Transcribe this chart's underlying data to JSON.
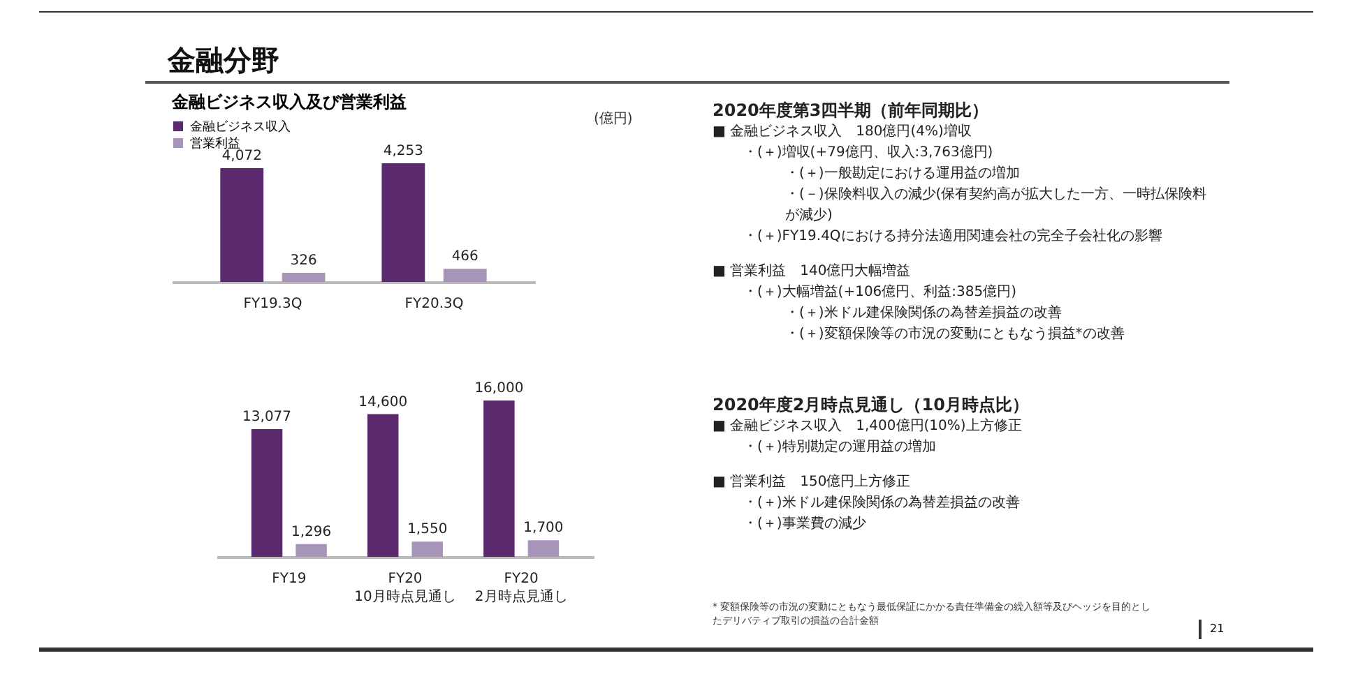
{
  "chart_data": [
    {
      "type": "bar",
      "title": "金融分野",
      "subtitle": "金融ビジネス収入及び営業利益",
      "ylabel": "(億円)",
      "categories": [
        "FY19.3Q",
        "FY20.3Q"
      ],
      "series": [
        {
          "name": "金融ビジネス収入",
          "color": "#5b2a6e",
          "values": [
            4072,
            4253
          ],
          "value_labels": [
            "4,072",
            "4,253"
          ]
        },
        {
          "name": "営業利益",
          "color": "#a893b9",
          "values": [
            326,
            466
          ],
          "value_labels": [
            "326",
            "466"
          ]
        }
      ],
      "legend": "top left",
      "tick_labels": "x"
    },
    {
      "type": "bar",
      "categories": [
        "FY19",
        "FY20\n10月時点見通し",
        "FY20\n2月時点見通し"
      ],
      "series": [
        {
          "color": "#5b2a6e",
          "values": [
            13077,
            14600,
            16000
          ],
          "value_labels": [
            "13,077",
            "14,600",
            "16,000"
          ]
        },
        {
          "color": "#a893b9",
          "values": [
            1296,
            1550,
            1700
          ],
          "value_labels": [
            "1,296",
            "1,550",
            "1,700"
          ]
        }
      ],
      "legend": false,
      "tick_labels": "x"
    },
    {
      "type": "other",
      "annotations": [
        "2020年度第3四半期（前年同期比）",
        "■ 金融ビジネス収入　180億円(4%)増収",
        "・(＋)増収(+79億円、収入:3,763億円)",
        "・(＋)一般勘定における運用益の増加",
        "・(－)保険料収入の減少(保有契約高が拡大した一方、一時払保険料が減少)",
        "・(＋)FY19.4Qにおける持分法適用関連会社の完全子会社化の影響",
        "■ 営業利益　140億円大幅増益",
        "・(＋)大幅増益(+106億円、利益:385億円)",
        "・(＋)米ドル建保険関係の為替差損益の改善",
        "・(＋)変額保険等の市況の変動にともなう損益*の改善",
        "2020年度2月時点見通し（10月時点比）",
        "■ 金融ビジネス収入　1,400億円(10%)上方修正",
        "・(＋)特別勘定の運用益の増加",
        "■ 営業利益　150億円上方修正",
        "・(＋)米ドル建保険関係の為替差損益の改善",
        "・(＋)事業費の減少",
        "* 変額保険等の市況の変動にともなう最低保証にかかる責任準備金の繰入額等及びヘッジを目的としたデリバティブ取引の損益の合計金額",
        "21"
      ]
    }
  ]
}
